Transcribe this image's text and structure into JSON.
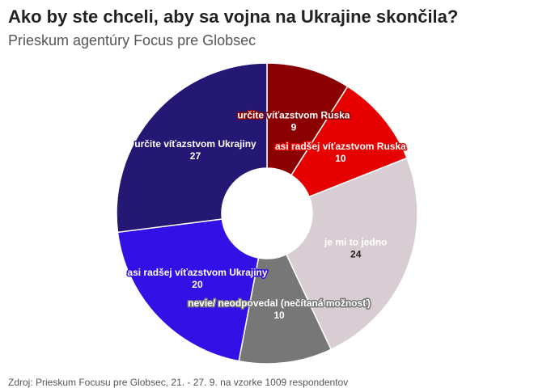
{
  "title": "Ako by ste chceli, aby sa vojna na Ukrajine skončila?",
  "subtitle": "Prieskum agentúry Focus pre Globsec",
  "source": "Zdroj: Prieskum Focusu pre Globsec, 21. - 27. 9. na vzorke 1009 respondentov",
  "chart_data": {
    "type": "pie",
    "title": "Ako by ste chceli, aby sa vojna na Ukrajine skončila?",
    "subtitle": "Prieskum agentúry Focus pre Globsec",
    "style": "donut",
    "slices": [
      {
        "label": "určite víťazstvom Ruska",
        "value": 9,
        "color": "#8b0000"
      },
      {
        "label": "asi radšej víťazstvom Ruska",
        "value": 10,
        "color": "#e60000"
      },
      {
        "label": "je mi to jedno",
        "value": 24,
        "color": "#d8cdd3"
      },
      {
        "label": "nevie/ neodpovedal (nečítaná možnosť)",
        "value": 10,
        "color": "#777777"
      },
      {
        "label": "asi radšej víťazstvom Ukrajiny",
        "value": 20,
        "color": "#3311e6"
      },
      {
        "label": "určite víťazstvom Ukrajiny",
        "value": 27,
        "color": "#251874"
      }
    ]
  }
}
